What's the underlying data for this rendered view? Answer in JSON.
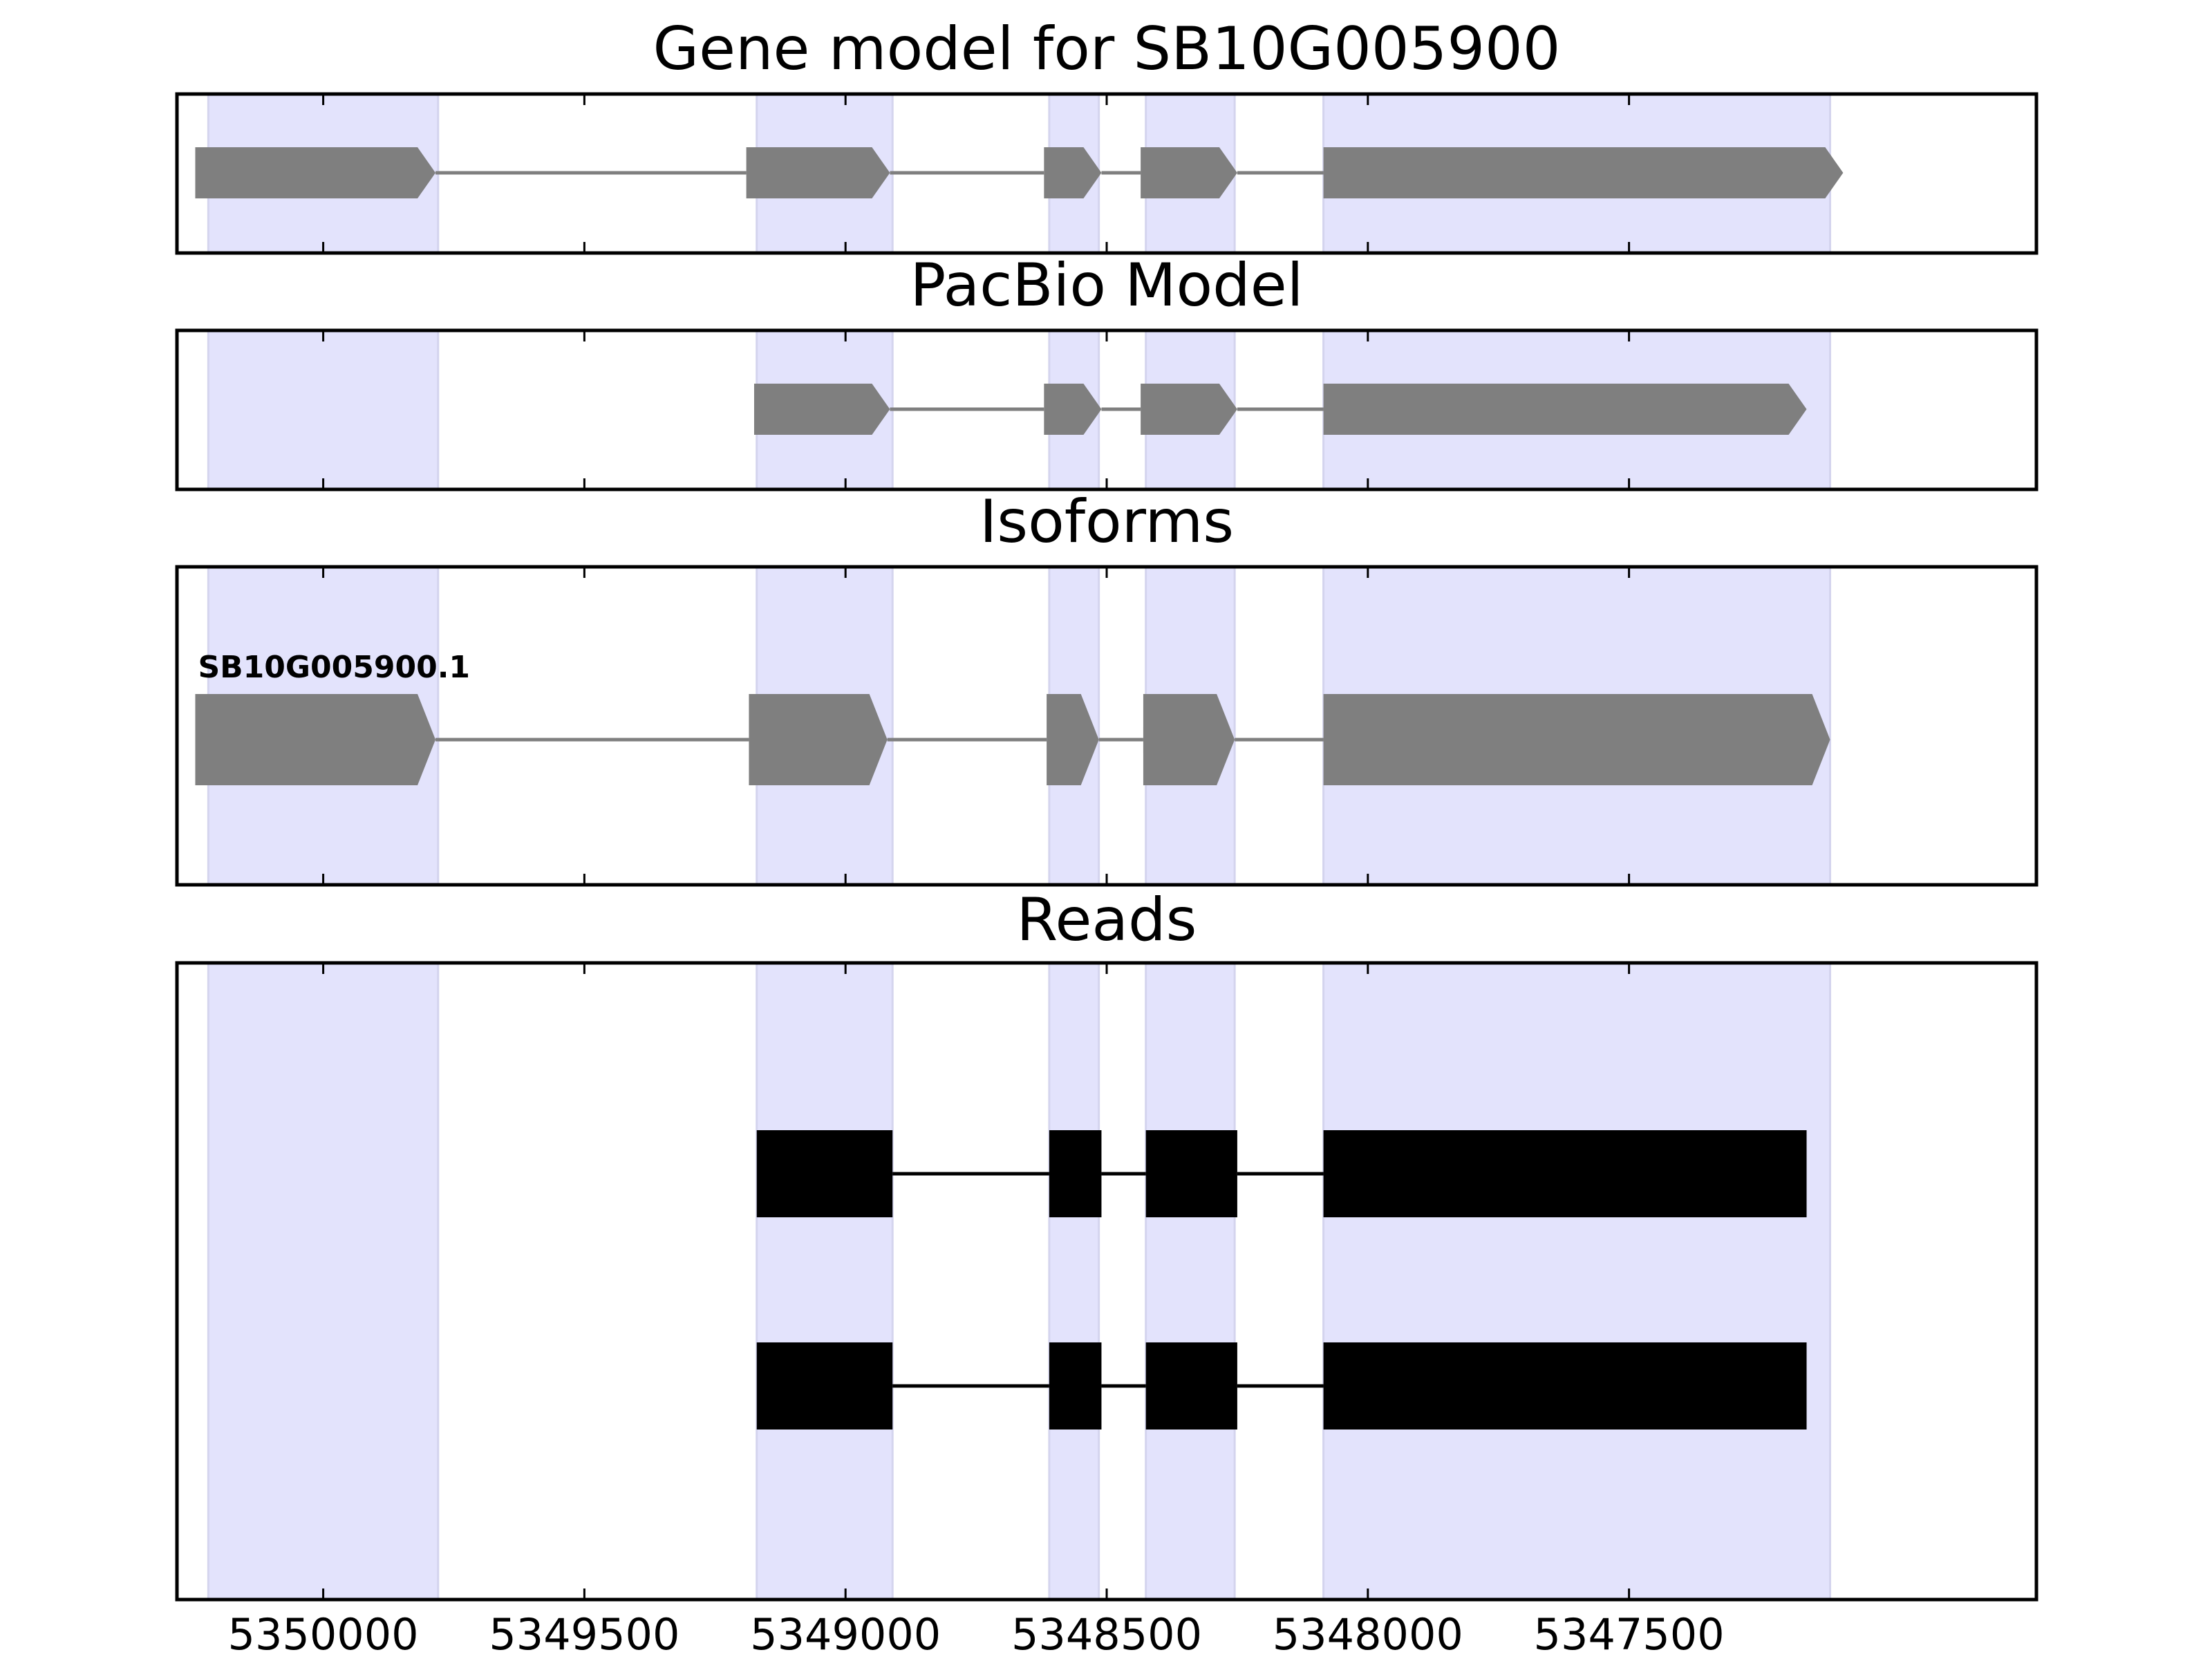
{
  "chart_data": [
    {
      "type": "gene-model",
      "title": "Gene model for SB10G005900",
      "xlim": [
        5350280,
        5346720
      ],
      "x_ticks": [
        5350000,
        5349500,
        5349000,
        5348500,
        5348000,
        5347500
      ],
      "x_tick_labels": [],
      "highlight_regions": [
        [
          5350220,
          5349780
        ],
        [
          5349170,
          5348910
        ],
        [
          5348610,
          5348515
        ],
        [
          5348425,
          5348255
        ],
        [
          5348085,
          5347115
        ]
      ],
      "tracks": [
        {
          "label": "",
          "style": "gray-arrow",
          "exons": [
            [
              5350245,
              5349785
            ],
            [
              5349190,
              5348915
            ],
            [
              5348620,
              5348510
            ],
            [
              5348435,
              5348250
            ],
            [
              5348085,
              5347090
            ]
          ]
        }
      ]
    },
    {
      "type": "gene-model",
      "title": "PacBio Model",
      "xlim": [
        5350280,
        5346720
      ],
      "x_ticks": [
        5350000,
        5349500,
        5349000,
        5348500,
        5348000,
        5347500
      ],
      "x_tick_labels": [],
      "highlight_regions": [
        [
          5350220,
          5349780
        ],
        [
          5349170,
          5348910
        ],
        [
          5348610,
          5348515
        ],
        [
          5348425,
          5348255
        ],
        [
          5348085,
          5347115
        ]
      ],
      "tracks": [
        {
          "label": "",
          "style": "gray-arrow",
          "exons": [
            [
              5349175,
              5348915
            ],
            [
              5348620,
              5348510
            ],
            [
              5348435,
              5348250
            ],
            [
              5348085,
              5347160
            ]
          ]
        }
      ]
    },
    {
      "type": "gene-model",
      "title": "Isoforms",
      "xlim": [
        5350280,
        5346720
      ],
      "x_ticks": [
        5350000,
        5349500,
        5349000,
        5348500,
        5348000,
        5347500
      ],
      "x_tick_labels": [],
      "highlight_regions": [
        [
          5350220,
          5349780
        ],
        [
          5349170,
          5348910
        ],
        [
          5348610,
          5348515
        ],
        [
          5348425,
          5348255
        ],
        [
          5348085,
          5347115
        ]
      ],
      "tracks": [
        {
          "label": "SB10G005900.1",
          "style": "gray-arrow",
          "exons": [
            [
              5350245,
              5349785
            ],
            [
              5349185,
              5348920
            ],
            [
              5348615,
              5348515
            ],
            [
              5348430,
              5348255
            ],
            [
              5348085,
              5347115
            ]
          ]
        }
      ]
    },
    {
      "type": "gene-model",
      "title": "Reads",
      "xlim": [
        5350280,
        5346720
      ],
      "x_ticks": [
        5350000,
        5349500,
        5349000,
        5348500,
        5348000,
        5347500
      ],
      "x_tick_labels": [
        "5350000",
        "5349500",
        "5349000",
        "5348500",
        "5348000",
        "5347500"
      ],
      "highlight_regions": [
        [
          5350220,
          5349780
        ],
        [
          5349170,
          5348910
        ],
        [
          5348610,
          5348515
        ],
        [
          5348425,
          5348255
        ],
        [
          5348085,
          5347115
        ]
      ],
      "tracks": [
        {
          "label": "",
          "style": "black-block",
          "exons": [
            [
              5349170,
              5348910
            ],
            [
              5348610,
              5348510
            ],
            [
              5348425,
              5348250
            ],
            [
              5348085,
              5347160
            ]
          ]
        },
        {
          "label": "",
          "style": "black-block",
          "exons": [
            [
              5349170,
              5348910
            ],
            [
              5348610,
              5348510
            ],
            [
              5348425,
              5348250
            ],
            [
              5348085,
              5347160
            ]
          ]
        }
      ]
    }
  ]
}
